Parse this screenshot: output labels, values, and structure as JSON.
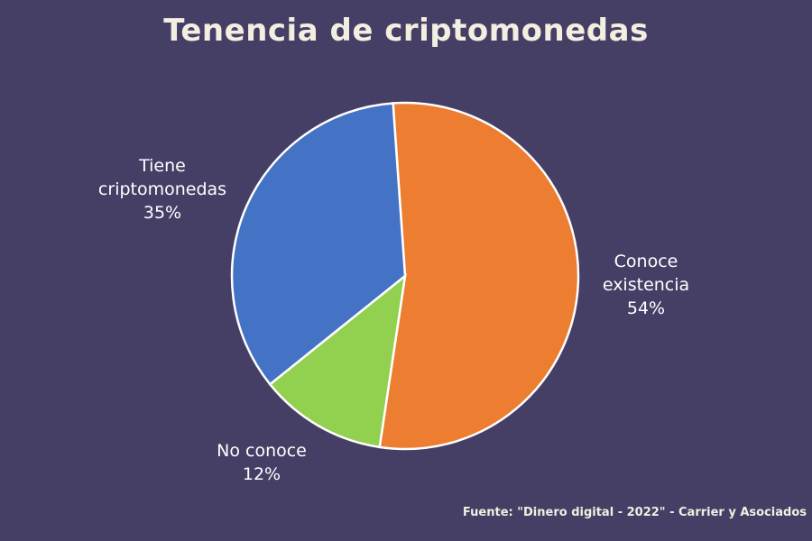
{
  "chart_data": {
    "type": "pie",
    "title": "Tenencia de criptomonedas",
    "slices": [
      {
        "label": "Conoce\nexistencia",
        "percent_label": "54%",
        "value": 54,
        "color": "#ed7d31"
      },
      {
        "label": "No conoce",
        "percent_label": "12%",
        "value": 12,
        "color": "#92d050"
      },
      {
        "label": "Tiene\ncriptomonedas",
        "percent_label": "35%",
        "value": 35,
        "color": "#4472c4"
      }
    ],
    "legend": "none",
    "source": "Fuente: \"Dinero digital - 2022\" - Carrier y Asociados"
  }
}
